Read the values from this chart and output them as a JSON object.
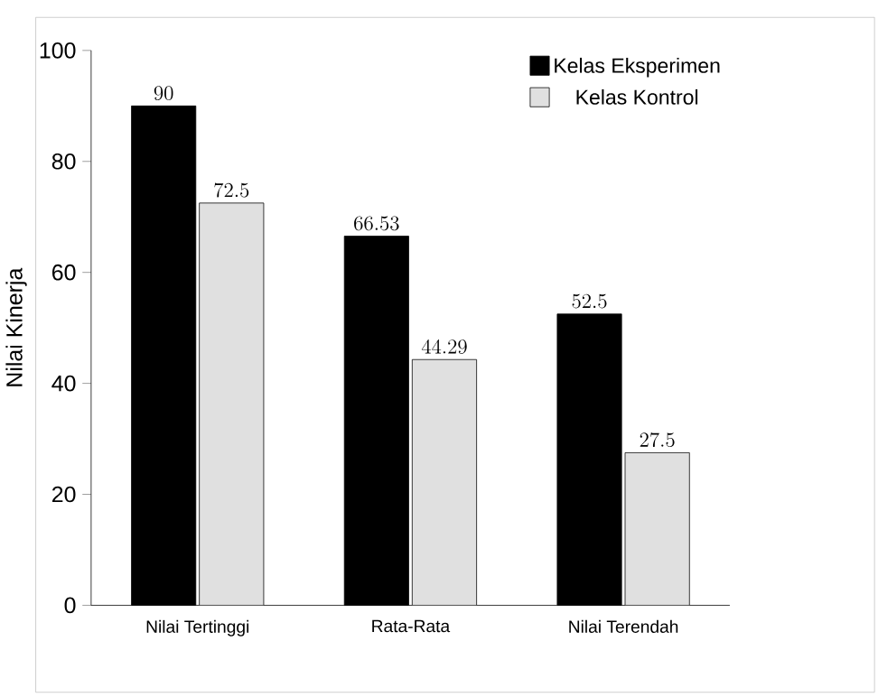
{
  "chart_data": {
    "type": "bar",
    "ylabel": "Nilai Kinerja",
    "categories": [
      "Nilai Tertinggi",
      "Rata-Rata",
      "Nilai Terendah"
    ],
    "series": [
      {
        "name": "Kelas Eksperimen",
        "color": "#000000",
        "values": [
          90,
          66.53,
          52.5
        ]
      },
      {
        "name": "Kelas Kontrol",
        "color": "#e0e0e0",
        "values": [
          72.5,
          44.29,
          27.5
        ]
      }
    ],
    "ylim": [
      0,
      100
    ],
    "yticks": [
      0,
      20,
      40,
      60,
      80,
      100
    ],
    "data_labels": true,
    "legend": "top right",
    "grid": false
  }
}
